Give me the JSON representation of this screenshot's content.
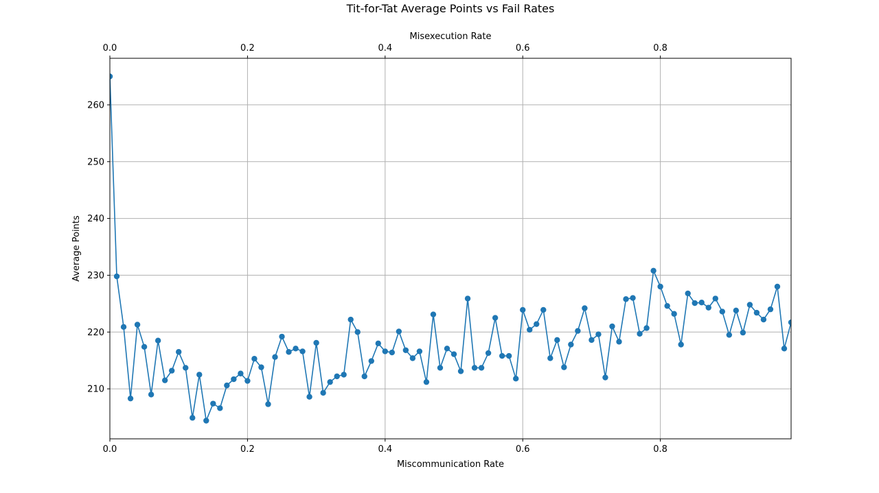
{
  "chart_data": {
    "type": "line",
    "title": "Tit-for-Tat Average Points vs Fail Rates",
    "xlabel": "Miscommunication Rate",
    "x2label": "Misexecution Rate",
    "ylabel": "Average Points",
    "xlim": [
      0,
      0.99
    ],
    "ylim": [
      201.2,
      268.2
    ],
    "xticks": [
      {
        "value": 0.0,
        "label": "0.0"
      },
      {
        "value": 0.2,
        "label": "0.2"
      },
      {
        "value": 0.4,
        "label": "0.4"
      },
      {
        "value": 0.6,
        "label": "0.6"
      },
      {
        "value": 0.8,
        "label": "0.8"
      }
    ],
    "x2ticks": [
      {
        "value": 0.0,
        "label": "0.0"
      },
      {
        "value": 0.2,
        "label": "0.2"
      },
      {
        "value": 0.4,
        "label": "0.4"
      },
      {
        "value": 0.6,
        "label": "0.6"
      },
      {
        "value": 0.8,
        "label": "0.8"
      }
    ],
    "yticks": [
      {
        "value": 210,
        "label": "210"
      },
      {
        "value": 220,
        "label": "220"
      },
      {
        "value": 230,
        "label": "230"
      },
      {
        "value": 240,
        "label": "240"
      },
      {
        "value": 250,
        "label": "250"
      },
      {
        "value": 260,
        "label": "260"
      }
    ],
    "grid": true,
    "color": "#1f77b4",
    "marker": "circle",
    "series": [
      {
        "x_start": 0.0,
        "x_step": 0.01,
        "values": [
          265.0,
          229.8,
          220.9,
          208.3,
          221.3,
          217.4,
          209.0,
          218.5,
          211.5,
          213.2,
          216.5,
          213.7,
          204.9,
          212.5,
          204.4,
          207.4,
          206.6,
          210.6,
          211.7,
          212.7,
          211.4,
          215.3,
          213.8,
          207.3,
          215.6,
          219.2,
          216.5,
          217.1,
          216.6,
          208.6,
          218.1,
          209.3,
          211.2,
          212.2,
          212.5,
          222.2,
          220.0,
          212.2,
          214.9,
          218.0,
          216.6,
          216.4,
          220.1,
          216.8,
          215.4,
          216.6,
          211.2,
          223.1,
          213.7,
          217.1,
          216.1,
          213.1,
          225.9,
          213.7,
          213.7,
          216.3,
          222.5,
          215.8,
          215.8,
          211.8,
          223.9,
          220.4,
          221.4,
          223.9,
          215.4,
          218.6,
          213.8,
          217.8,
          220.2,
          224.2,
          218.6,
          219.6,
          212.0,
          221.0,
          218.3,
          225.8,
          226.0,
          219.7,
          220.7,
          230.8,
          228.0,
          224.6,
          223.2,
          217.8,
          226.8,
          225.1,
          225.2,
          224.3,
          225.9,
          223.6,
          219.5,
          223.8,
          219.9,
          224.8,
          223.4,
          222.2,
          224.0,
          228.0,
          217.1,
          221.7
        ]
      }
    ]
  }
}
